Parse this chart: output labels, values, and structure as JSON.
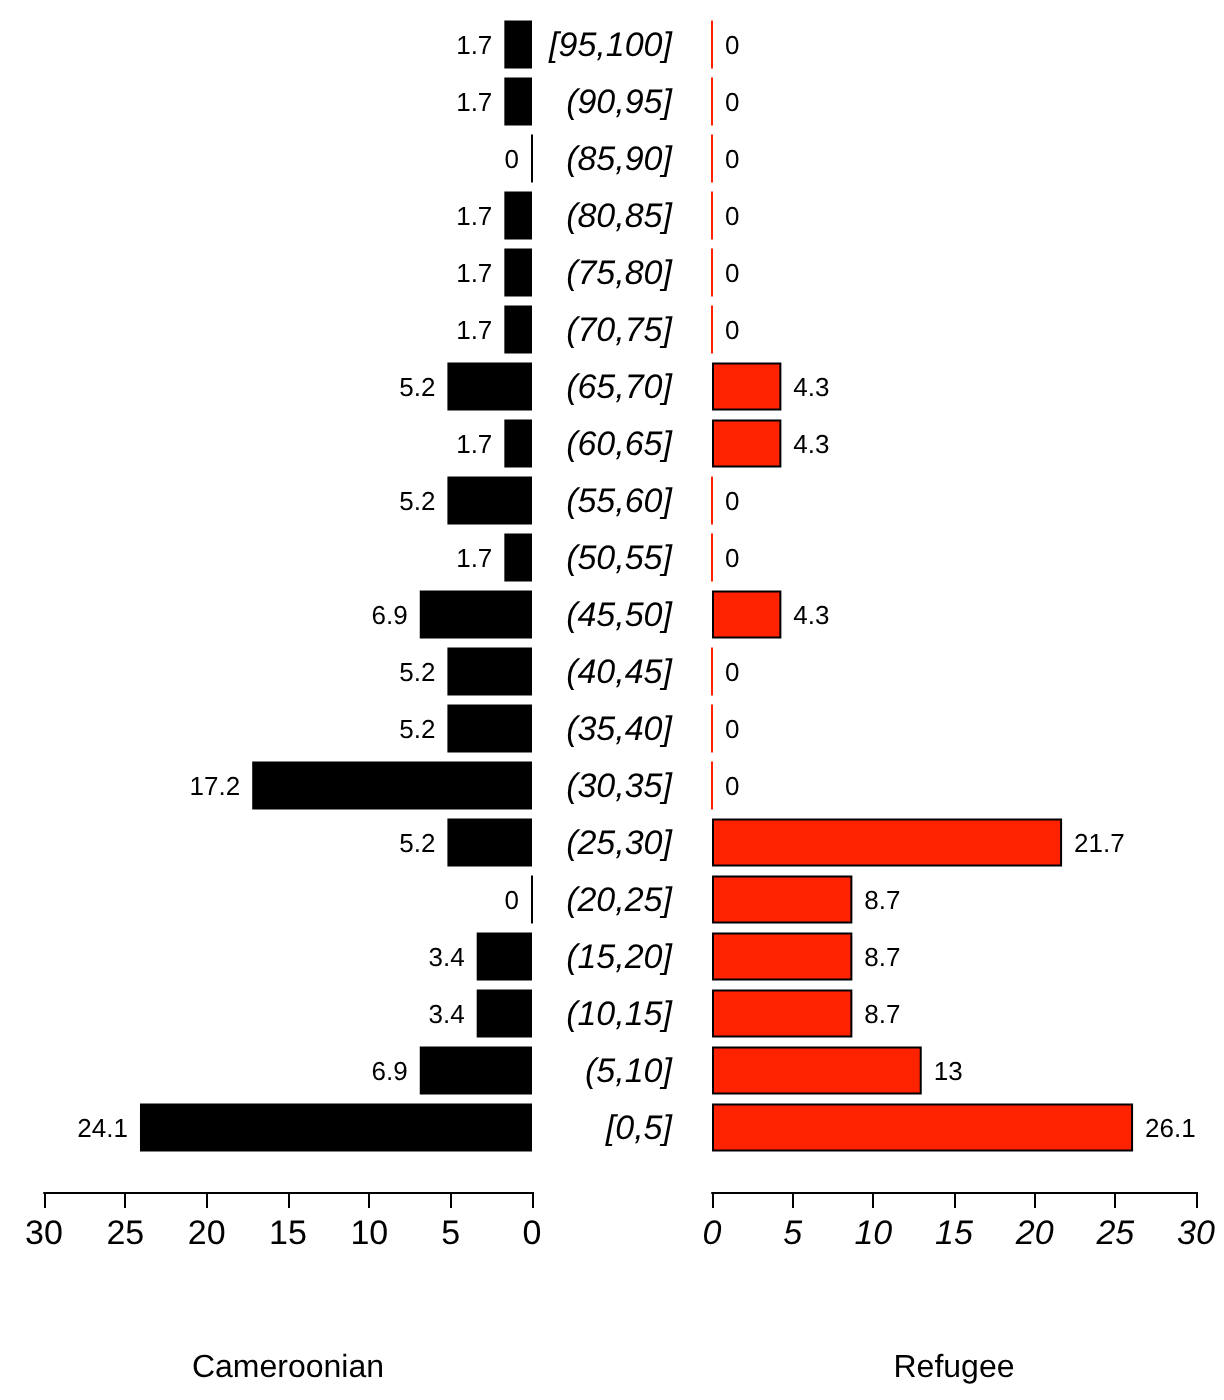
{
  "chart_data": [
    {
      "type": "bar",
      "orientation": "horizontal",
      "xlabel": "Cameroonian",
      "categories": [
        "[95,100]",
        "(90,95]",
        "(85,90]",
        "(80,85]",
        "(75,80]",
        "(70,75]",
        "(65,70]",
        "(60,65]",
        "(55,60]",
        "(50,55]",
        "(45,50]",
        "(40,45]",
        "(35,40]",
        "(30,35]",
        "(25,30]",
        "(20,25]",
        "(15,20]",
        "(10,15]",
        "(5,10]",
        "[0,5]"
      ],
      "series": [
        {
          "color": "#000000",
          "values": [
            1.7,
            1.7,
            0,
            1.7,
            1.7,
            1.7,
            5.2,
            1.7,
            5.2,
            1.7,
            6.9,
            5.2,
            5.2,
            17.2,
            5.2,
            0,
            3.4,
            3.4,
            6.9,
            24.1
          ]
        }
      ],
      "xlim": [
        30,
        0
      ],
      "xticks": [
        30,
        25,
        20,
        15,
        10,
        5,
        0
      ],
      "data_labels": true,
      "grid": false
    },
    {
      "type": "bar",
      "orientation": "horizontal",
      "xlabel": "Refugee",
      "tick_labels": "x",
      "categories": [
        null,
        null,
        null,
        null,
        null,
        null,
        null,
        null,
        null,
        null,
        null,
        null,
        null,
        null,
        null,
        null,
        null,
        null,
        null,
        null
      ],
      "series": [
        {
          "color": "#ff2200",
          "values": [
            0,
            0,
            0,
            0,
            0,
            0,
            4.3,
            4.3,
            0,
            0,
            4.3,
            0,
            0,
            0,
            21.7,
            8.7,
            8.7,
            8.7,
            13,
            26.1
          ]
        }
      ],
      "xlim": [
        0,
        30
      ],
      "xticks": [
        0,
        5,
        10,
        15,
        20,
        25,
        30
      ],
      "data_labels": true,
      "grid": false
    }
  ]
}
